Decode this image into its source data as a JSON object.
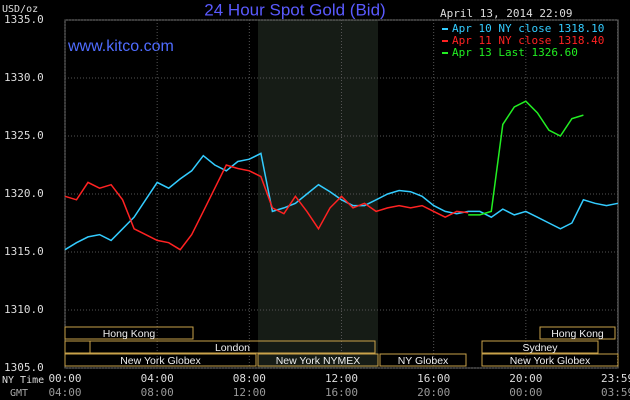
{
  "chart_data": {
    "type": "line",
    "title": "24 Hour Spot Gold (Bid)",
    "y_unit": "USD/oz",
    "site": "www.kitco.com",
    "timestamp": "April 13, 2014 22:09",
    "x": [
      0,
      0.5,
      1,
      1.5,
      2,
      2.5,
      3,
      3.5,
      4,
      4.5,
      5,
      5.5,
      6,
      6.5,
      7,
      7.5,
      8,
      8.5,
      9,
      9.5,
      10,
      10.5,
      11,
      11.5,
      12,
      12.5,
      13,
      13.5,
      14,
      14.5,
      15,
      15.5,
      16,
      16.5,
      17,
      17.5,
      18,
      18.5,
      19,
      19.5,
      20,
      20.5,
      21,
      21.5,
      22,
      22.5,
      23,
      23.5,
      24
    ],
    "series": [
      {
        "name": "Apr 10 NY close 1318.10",
        "color": "#33ccff",
        "values": [
          1315.2,
          1315.8,
          1316.3,
          1316.5,
          1316.0,
          1317.0,
          1318.0,
          1319.5,
          1321.0,
          1320.5,
          1321.3,
          1322.0,
          1323.3,
          1322.5,
          1322.0,
          1322.8,
          1323.0,
          1323.5,
          1318.5,
          1318.8,
          1319.2,
          1320.0,
          1320.8,
          1320.2,
          1319.5,
          1319.0,
          1319.0,
          1319.5,
          1320.0,
          1320.3,
          1320.2,
          1319.8,
          1319.0,
          1318.5,
          1318.3,
          1318.5,
          1318.5,
          1318.0,
          1318.7,
          1318.2,
          1318.5,
          1318.0,
          1317.5,
          1317.0,
          1317.5,
          1319.5,
          1319.2,
          1319.0,
          1319.2
        ]
      },
      {
        "name": "Apr 11 NY close 1318.40",
        "color": "#ff2222",
        "values": [
          1319.8,
          1319.5,
          1321.0,
          1320.5,
          1320.8,
          1319.5,
          1317.0,
          1316.5,
          1316.0,
          1315.8,
          1315.2,
          1316.5,
          1318.5,
          1320.5,
          1322.5,
          1322.2,
          1322.0,
          1321.5,
          1318.8,
          1318.3,
          1319.8,
          1318.5,
          1317.0,
          1318.8,
          1319.8,
          1318.8,
          1319.2,
          1318.5,
          1318.8,
          1319.0,
          1318.8,
          1319.0,
          1318.5,
          1318.0,
          1318.5,
          1318.4,
          null,
          null,
          null,
          null,
          null,
          null,
          null,
          null,
          null,
          null,
          null,
          null,
          null
        ]
      },
      {
        "name": "Apr 13 Last 1326.60",
        "color": "#22ee22",
        "values": [
          null,
          null,
          null,
          null,
          null,
          null,
          null,
          null,
          null,
          null,
          null,
          null,
          null,
          null,
          null,
          null,
          null,
          null,
          null,
          null,
          null,
          null,
          null,
          null,
          null,
          null,
          null,
          null,
          null,
          null,
          null,
          null,
          null,
          null,
          null,
          1318.2,
          1318.2,
          1318.5,
          1326.0,
          1327.5,
          1328.0,
          1327.0,
          1325.5,
          1325.0,
          1326.5,
          1326.8,
          null,
          null,
          null
        ]
      }
    ],
    "xlim": [
      0,
      24
    ],
    "xticks": [
      {
        "value": 0,
        "label": "00:00"
      },
      {
        "value": 4,
        "label": "04:00"
      },
      {
        "value": 8,
        "label": "08:00"
      },
      {
        "value": 12,
        "label": "12:00"
      },
      {
        "value": 16,
        "label": "16:00"
      },
      {
        "value": 20,
        "label": "20:00"
      },
      {
        "value": 23.98,
        "label": "23:59"
      }
    ],
    "x_row_label": "NY Time",
    "x2_row_label": "GMT",
    "x2_tick_labels": [
      "04:00",
      "08:00",
      "12:00",
      "16:00",
      "20:00",
      "00:00",
      "03:59"
    ],
    "ylim": [
      1305,
      1335
    ],
    "yticks": [
      {
        "value": 1305,
        "label": "1305.0"
      },
      {
        "value": 1310,
        "label": "1310.0"
      },
      {
        "value": 1315,
        "label": "1315.0"
      },
      {
        "value": 1320,
        "label": "1320.0"
      },
      {
        "value": 1325,
        "label": "1325.0"
      },
      {
        "value": 1330,
        "label": "1330.0"
      },
      {
        "value": 1335,
        "label": "1335.0"
      }
    ],
    "grid": true,
    "sessions": [
      "Hong Kong",
      "London",
      "New York Globex",
      "New York NYMEX",
      "NY Globex",
      "Hong Kong",
      "Sydney",
      "New York Globex"
    ]
  }
}
